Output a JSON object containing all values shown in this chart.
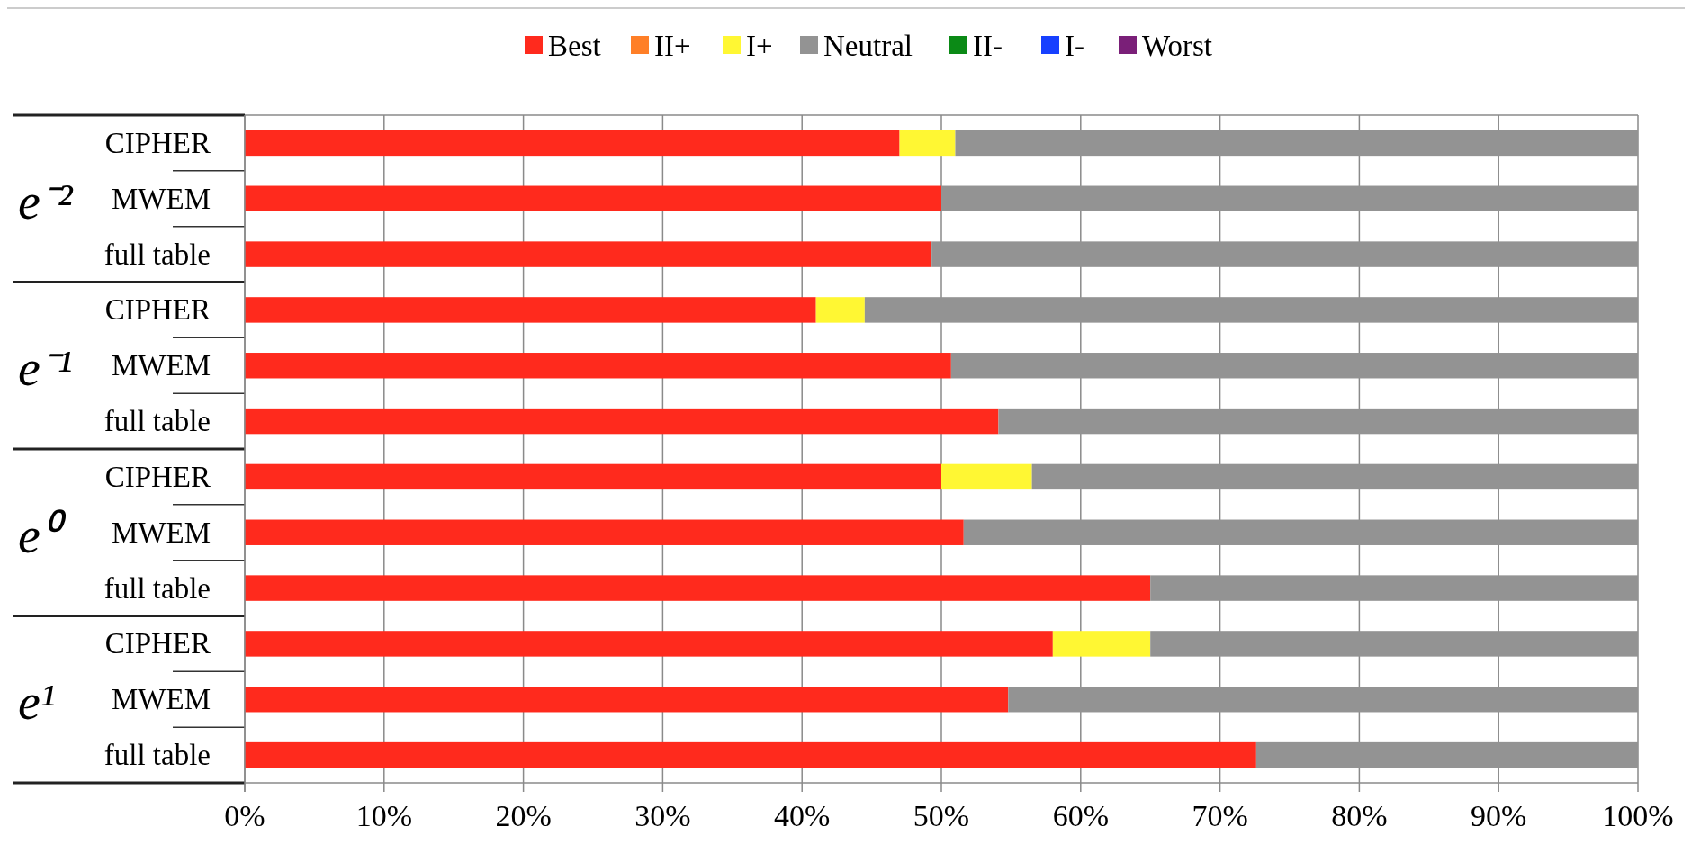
{
  "chart_data": {
    "type": "bar",
    "orientation": "horizontal",
    "stacked": true,
    "categories": [
      "CIPHER",
      "MWEM",
      "full table",
      "CIPHER",
      "MWEM",
      "full table",
      "CIPHER",
      "MWEM",
      "full table",
      "CIPHER",
      "MWEM",
      "full table"
    ],
    "series": [
      {
        "name": "Best",
        "color": "#ff2a1d",
        "values": [
          47,
          50,
          49.3,
          41,
          50.7,
          54.1,
          50,
          51.6,
          65,
          58,
          54.8,
          72.6
        ]
      },
      {
        "name": "II+",
        "color": "#ff7f27",
        "values": [
          0,
          0,
          0,
          0,
          0,
          0,
          0,
          0,
          0,
          0,
          0,
          0
        ]
      },
      {
        "name": "I+",
        "color": "#fff733",
        "values": [
          4,
          0,
          0,
          3.5,
          0,
          0,
          6.5,
          0,
          0,
          7,
          0,
          0
        ]
      },
      {
        "name": "Neutral",
        "color": "#939393",
        "values": [
          49,
          50,
          50.7,
          55.5,
          49.3,
          45.9,
          43.5,
          48.4,
          35,
          35,
          45.2,
          27.4
        ]
      },
      {
        "name": "II-",
        "color": "#0b8a16",
        "values": [
          0,
          0,
          0,
          0,
          0,
          0,
          0,
          0,
          0,
          0,
          0,
          0
        ]
      },
      {
        "name": "I-",
        "color": "#1740ff",
        "values": [
          0,
          0,
          0,
          0,
          0,
          0,
          0,
          0,
          0,
          0,
          0,
          0
        ]
      },
      {
        "name": "Worst",
        "color": "#7a1f78",
        "values": [
          0,
          0,
          0,
          0,
          0,
          0,
          0,
          0,
          0,
          0,
          0,
          0
        ]
      }
    ],
    "annotations": [
      "e⁻²",
      "e⁻¹",
      "e⁰",
      "e¹"
    ],
    "xlim": [
      0,
      100
    ],
    "xticks": [
      {
        "value": 0,
        "label": "0%"
      },
      {
        "value": 10,
        "label": "10%"
      },
      {
        "value": 20,
        "label": "20%"
      },
      {
        "value": 30,
        "label": "30%"
      },
      {
        "value": 40,
        "label": "40%"
      },
      {
        "value": 50,
        "label": "50%"
      },
      {
        "value": 60,
        "label": "60%"
      },
      {
        "value": 70,
        "label": "70%"
      },
      {
        "value": 80,
        "label": "80%"
      },
      {
        "value": 90,
        "label": "90%"
      },
      {
        "value": 100,
        "label": "100%"
      }
    ],
    "grid": "x",
    "legend": "top"
  }
}
